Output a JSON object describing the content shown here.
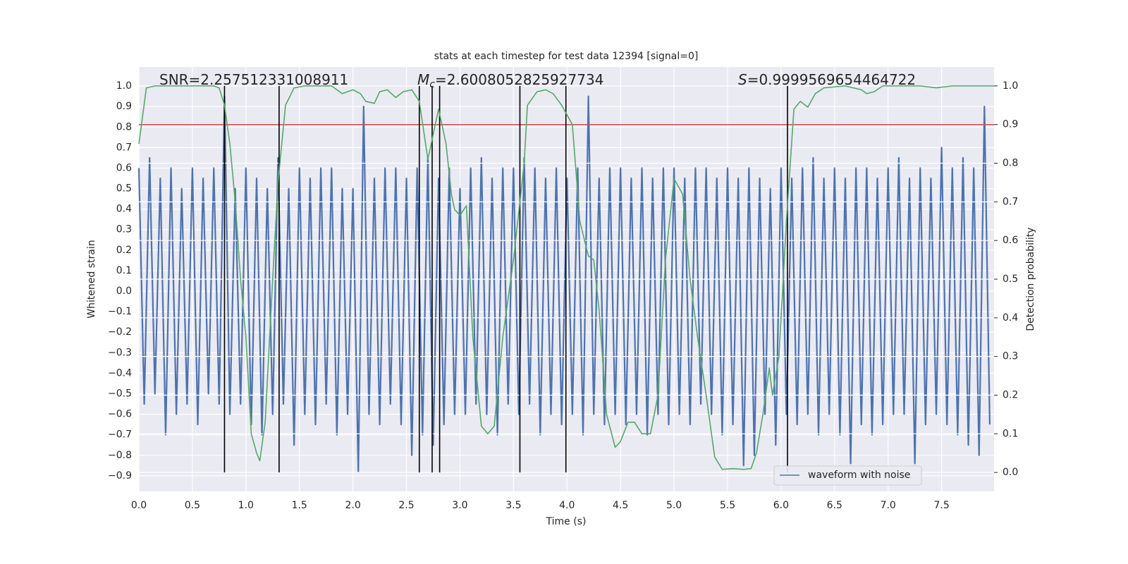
{
  "chart_data": {
    "type": "line",
    "title": "stats at each timestep for test data 12394 [signal=0]",
    "xlabel": "Time (s)",
    "ylabel": "Whitened strain",
    "y2label": "Detection probability",
    "xlim": [
      0,
      7.99
    ],
    "ylim": [
      -0.976,
      1.093
    ],
    "y2lim": [
      -0.049,
      1.049
    ],
    "xticks": [
      {
        "value": 0,
        "label": "0.0"
      },
      0.5,
      {
        "value": 1,
        "label": "1.0"
      },
      1.5,
      {
        "value": 2,
        "label": "2.0"
      },
      2.5,
      {
        "value": 3,
        "label": "3.0"
      },
      3.5,
      {
        "value": 4,
        "label": "4.0"
      },
      4.5,
      {
        "value": 5,
        "label": "5.0"
      },
      5.5,
      {
        "value": 6,
        "label": "6.0"
      },
      6.5,
      {
        "value": 7,
        "label": "7.0"
      },
      7.5
    ],
    "yticks": [
      {
        "value": -0.9,
        "label": "−0.9"
      },
      {
        "value": -0.8,
        "label": "−0.8"
      },
      {
        "value": -0.7,
        "label": "−0.7"
      },
      {
        "value": -0.6,
        "label": "−0.6"
      },
      {
        "value": -0.5,
        "label": "−0.5"
      },
      {
        "value": -0.4,
        "label": "−0.4"
      },
      {
        "value": -0.3,
        "label": "−0.3"
      },
      {
        "value": -0.2,
        "label": "−0.2"
      },
      {
        "value": -0.1,
        "label": "−0.1"
      },
      {
        "value": 0,
        "label": "0.0"
      },
      0.1,
      0.2,
      0.3,
      0.4,
      0.5,
      0.6,
      0.7,
      0.8,
      0.9,
      {
        "value": 1,
        "label": "1.0"
      }
    ],
    "y2ticks": [
      {
        "value": 0,
        "label": "0.0"
      },
      0.1,
      0.2,
      0.3,
      0.4,
      0.5,
      0.6,
      0.7,
      0.8,
      0.9,
      {
        "value": 1,
        "label": "1.0"
      }
    ],
    "grid": true,
    "legend": "lower right",
    "series": [
      {
        "name": "waveform with noise",
        "color": "#4c72b0",
        "x": [
          0,
          0.05,
          0.1,
          0.15,
          0.2,
          0.25,
          0.3,
          0.35,
          0.4,
          0.45,
          0.5,
          0.55,
          0.6,
          0.65,
          0.7,
          0.75,
          0.8,
          0.85,
          0.9,
          0.95,
          1,
          1.05,
          1.1,
          1.15,
          1.2,
          1.25,
          1.3,
          1.35,
          1.4,
          1.45,
          1.5,
          1.55,
          1.6,
          1.65,
          1.7,
          1.75,
          1.8,
          1.85,
          1.9,
          1.95,
          2,
          2.05,
          2.1,
          2.15,
          2.2,
          2.25,
          2.3,
          2.35,
          2.4,
          2.45,
          2.5,
          2.55,
          2.6,
          2.65,
          2.7,
          2.75,
          2.8,
          2.85,
          2.9,
          2.95,
          3,
          3.05,
          3.1,
          3.15,
          3.2,
          3.25,
          3.3,
          3.35,
          3.4,
          3.45,
          3.5,
          3.55,
          3.6,
          3.65,
          3.7,
          3.75,
          3.8,
          3.85,
          3.9,
          3.95,
          4,
          4.05,
          4.1,
          4.15,
          4.2,
          4.25,
          4.3,
          4.35,
          4.4,
          4.45,
          4.5,
          4.55,
          4.6,
          4.65,
          4.7,
          4.75,
          4.8,
          4.85,
          4.9,
          4.95,
          5,
          5.05,
          5.1,
          5.15,
          5.2,
          5.25,
          5.3,
          5.35,
          5.4,
          5.45,
          5.5,
          5.55,
          5.6,
          5.65,
          5.7,
          5.75,
          5.8,
          5.85,
          5.9,
          5.95,
          6,
          6.05,
          6.1,
          6.15,
          6.2,
          6.25,
          6.3,
          6.35,
          6.4,
          6.45,
          6.5,
          6.55,
          6.6,
          6.65,
          6.7,
          6.75,
          6.8,
          6.85,
          6.9,
          6.95,
          7,
          7.05,
          7.1,
          7.15,
          7.2,
          7.25,
          7.3,
          7.35,
          7.4,
          7.45,
          7.5,
          7.55,
          7.6,
          7.65,
          7.7,
          7.75,
          7.8,
          7.85,
          7.9,
          7.95
        ],
        "values": [
          0.6,
          -0.55,
          0.65,
          -0.5,
          0.55,
          -0.7,
          0.6,
          -0.6,
          0.5,
          -0.55,
          0.6,
          -0.65,
          0.55,
          -0.5,
          0.6,
          -0.55,
          0.95,
          -0.6,
          0.5,
          -0.55,
          0.6,
          -0.65,
          0.55,
          -0.7,
          0.5,
          -0.6,
          0.65,
          -0.55,
          0.5,
          -0.75,
          0.6,
          -0.6,
          0.55,
          -0.65,
          0.6,
          -0.55,
          0.6,
          -0.7,
          0.5,
          -0.6,
          0.5,
          -0.88,
          0.9,
          -0.6,
          0.55,
          -0.65,
          0.6,
          -0.55,
          0.6,
          -0.65,
          0.55,
          -0.8,
          0.6,
          -0.7,
          0.65,
          -0.75,
          0.55,
          -0.65,
          0.6,
          -0.6,
          0.5,
          -0.6,
          0.6,
          -0.55,
          0.65,
          -0.6,
          0.55,
          -0.7,
          0.6,
          -0.55,
          0.6,
          -0.6,
          0.65,
          -0.55,
          0.6,
          -0.7,
          0.55,
          -0.6,
          0.6,
          -0.65,
          0.55,
          -0.6,
          0.6,
          -0.7,
          0.95,
          -0.6,
          0.55,
          -0.65,
          0.6,
          -0.6,
          0.6,
          -0.65,
          0.55,
          -0.6,
          0.6,
          -0.7,
          0.55,
          -0.6,
          0.6,
          -0.65,
          0.6,
          -0.6,
          0.55,
          -0.65,
          0.6,
          -0.55,
          0.6,
          -0.6,
          0.55,
          -0.7,
          0.6,
          -0.65,
          0.55,
          -0.85,
          0.6,
          -0.8,
          0.55,
          -0.6,
          0.5,
          -0.75,
          0.6,
          -0.6,
          0.55,
          -0.65,
          0.6,
          -0.6,
          0.65,
          -0.7,
          0.55,
          -0.6,
          0.6,
          -0.7,
          0.55,
          -0.84,
          0.6,
          -0.65,
          0.6,
          -0.7,
          0.55,
          -0.65,
          0.6,
          -0.6,
          0.65,
          -0.6,
          0.55,
          -0.84,
          0.6,
          -0.65,
          0.55,
          -0.6,
          0.7,
          -0.65,
          0.6,
          -0.7,
          0.65,
          -0.75,
          0.6,
          -0.8,
          0.9,
          -0.65
        ]
      },
      {
        "color": "#55a868",
        "axis": "y2",
        "x": [
          0,
          0.07,
          0.15,
          0.7,
          0.75,
          0.8,
          0.85,
          0.9,
          0.95,
          1,
          1.05,
          1.1,
          1.13,
          1.18,
          1.25,
          1.3,
          1.37,
          1.45,
          1.55,
          1.8,
          1.9,
          2,
          2.07,
          2.12,
          2.2,
          2.25,
          2.32,
          2.4,
          2.47,
          2.55,
          2.62,
          2.7,
          2.8,
          2.87,
          2.92,
          2.95,
          3,
          3.06,
          3.12,
          3.2,
          3.26,
          3.32,
          3.4,
          3.5,
          3.6,
          3.63,
          3.72,
          3.8,
          3.87,
          3.95,
          4.05,
          4.12,
          4.2,
          4.25,
          4.3,
          4.37,
          4.45,
          4.5,
          4.57,
          4.63,
          4.7,
          4.78,
          4.85,
          4.92,
          5,
          5.08,
          5.15,
          5.22,
          5.3,
          5.38,
          5.45,
          5.55,
          5.65,
          5.72,
          5.77,
          5.83,
          5.89,
          5.92,
          5.98,
          6.05,
          6.12,
          6.18,
          6.25,
          6.32,
          6.4,
          6.6,
          6.75,
          6.8,
          6.87,
          6.95,
          7.3,
          7.45,
          7.6,
          7.99
        ],
        "values": [
          0.85,
          0.995,
          1,
          1,
          0.995,
          0.95,
          0.85,
          0.7,
          0.5,
          0.35,
          0.1,
          0.05,
          0.03,
          0.13,
          0.5,
          0.75,
          0.95,
          0.995,
          1,
          1,
          0.98,
          0.99,
          0.98,
          0.96,
          0.955,
          0.985,
          0.99,
          0.97,
          0.985,
          0.99,
          0.96,
          0.81,
          0.94,
          0.85,
          0.72,
          0.68,
          0.665,
          0.69,
          0.35,
          0.12,
          0.1,
          0.12,
          0.35,
          0.55,
          0.8,
          0.95,
          0.985,
          0.99,
          0.98,
          0.95,
          0.9,
          0.65,
          0.56,
          0.55,
          0.42,
          0.15,
          0.065,
          0.08,
          0.13,
          0.13,
          0.1,
          0.1,
          0.2,
          0.55,
          0.76,
          0.72,
          0.5,
          0.35,
          0.2,
          0.04,
          0.008,
          0.01,
          0.008,
          0.01,
          0.05,
          0.15,
          0.27,
          0.2,
          0.3,
          0.65,
          0.94,
          0.96,
          0.945,
          0.98,
          0.995,
          1,
          0.99,
          0.98,
          0.985,
          1,
          1,
          0.995,
          1,
          1
        ]
      }
    ],
    "threshold": {
      "value": 0.9,
      "axis": "y2",
      "color": "#c44e52"
    },
    "vlines": {
      "x": [
        0.8,
        1.31,
        2.62,
        2.74,
        2.81,
        3.56,
        3.99,
        6.06
      ],
      "range": [
        0,
        1
      ],
      "axis": "y2",
      "color": "#000000"
    },
    "annotations": [
      {
        "label": "SNR=2.257512331008911"
      },
      {
        "symbol": "M",
        "subscript": "c",
        "label": "=2.6008052825927734"
      },
      {
        "symbol": "S",
        "label": "=0.9999569654464722"
      }
    ]
  }
}
